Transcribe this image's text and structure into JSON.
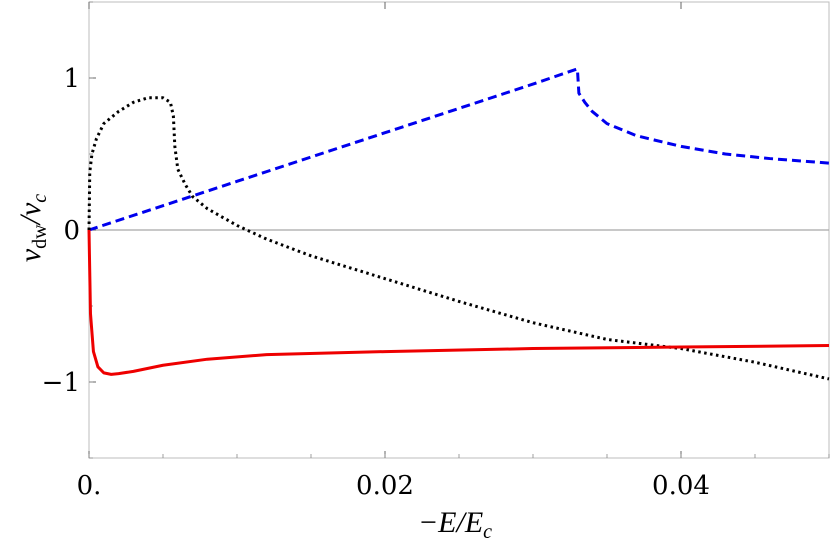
{
  "chart_data": {
    "type": "line",
    "title": "",
    "xlabel": "−E/E_c",
    "ylabel": "v_dw/v_c",
    "xlim": [
      0,
      0.05
    ],
    "ylim": [
      -1.5,
      1.5
    ],
    "grid": false,
    "legend": "none",
    "x_ticks": [
      {
        "value": 0,
        "label": "0."
      },
      {
        "value": 0.02,
        "label": "0.02"
      },
      {
        "value": 0.04,
        "label": "0.04"
      }
    ],
    "y_ticks": [
      {
        "value": -1,
        "label": "−1"
      },
      {
        "value": 0,
        "label": "0"
      },
      {
        "value": 1,
        "label": "1"
      }
    ],
    "series": [
      {
        "style": "dashed",
        "color": "#0000ee",
        "x": [
          0,
          0.005,
          0.01,
          0.015,
          0.02,
          0.025,
          0.03,
          0.033,
          0.0331,
          0.0335,
          0.034,
          0.035,
          0.037,
          0.04,
          0.043,
          0.046,
          0.05
        ],
        "y": [
          0,
          0.16,
          0.32,
          0.48,
          0.64,
          0.8,
          0.96,
          1.06,
          0.9,
          0.84,
          0.78,
          0.7,
          0.62,
          0.55,
          0.5,
          0.47,
          0.44
        ]
      },
      {
        "style": "dotted",
        "color": "#000000",
        "x": [
          0,
          5e-05,
          0.0002,
          0.0005,
          0.001,
          0.002,
          0.003,
          0.004,
          0.005,
          0.0055,
          0.0057,
          0.0058,
          0.006,
          0.0065,
          0.007,
          0.008,
          0.01,
          0.012,
          0.015,
          0.02,
          0.025,
          0.03,
          0.035,
          0.04,
          0.045,
          0.05
        ],
        "y": [
          0,
          0.38,
          0.5,
          0.6,
          0.7,
          0.78,
          0.84,
          0.87,
          0.87,
          0.84,
          0.75,
          0.55,
          0.4,
          0.3,
          0.22,
          0.14,
          0.03,
          -0.06,
          -0.17,
          -0.32,
          -0.47,
          -0.61,
          -0.72,
          -0.78,
          -0.87,
          -0.98
        ]
      },
      {
        "style": "solid",
        "color": "#ee0000",
        "x": [
          0,
          0.0001,
          0.0003,
          0.0006,
          0.001,
          0.0015,
          0.002,
          0.003,
          0.005,
          0.008,
          0.012,
          0.02,
          0.03,
          0.04,
          0.05
        ],
        "y": [
          0,
          -0.55,
          -0.8,
          -0.9,
          -0.94,
          -0.95,
          -0.945,
          -0.93,
          -0.89,
          -0.85,
          -0.82,
          -0.8,
          -0.78,
          -0.77,
          -0.76
        ]
      }
    ]
  }
}
